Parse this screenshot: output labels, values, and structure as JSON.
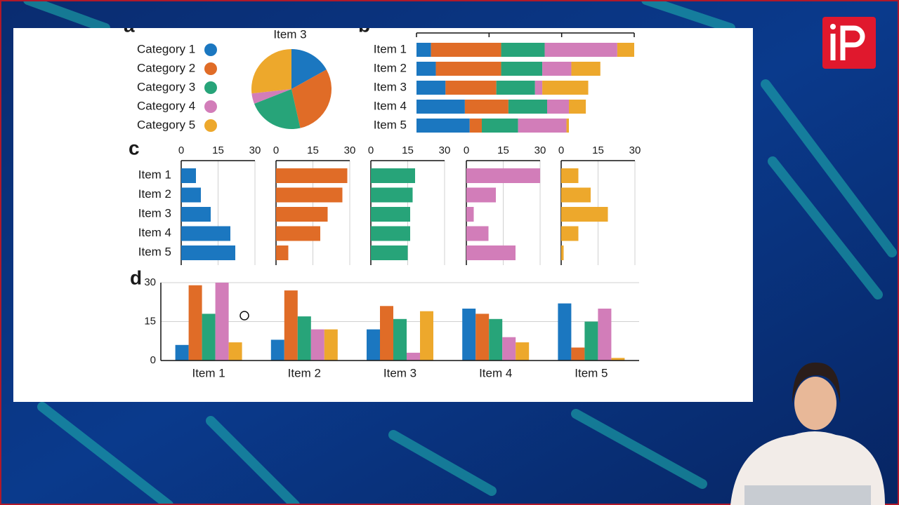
{
  "chart_data": [
    {
      "type": "pie",
      "panel": "a",
      "title": "Item 3",
      "categories": [
        "Category 1",
        "Category 2",
        "Category 3",
        "Category 4",
        "Category 5"
      ],
      "values": [
        12,
        21,
        16,
        3,
        19
      ],
      "colors": [
        "#1b77c0",
        "#e06c27",
        "#27a479",
        "#d27db9",
        "#eda82c"
      ]
    },
    {
      "type": "stacked-bar",
      "panel": "b",
      "categories": [
        "Item 1",
        "Item 2",
        "Item 3",
        "Item 4",
        "Item 5"
      ],
      "xlim": [
        0,
        90
      ],
      "xticks": [
        0,
        30,
        60,
        90
      ],
      "series": [
        {
          "color": "#1b77c0",
          "values": [
            6,
            8,
            12,
            20,
            22
          ]
        },
        {
          "color": "#e06c27",
          "values": [
            29,
            27,
            21,
            18,
            5
          ]
        },
        {
          "color": "#27a479",
          "values": [
            18,
            17,
            16,
            16,
            15
          ]
        },
        {
          "color": "#d27db9",
          "values": [
            30,
            12,
            3,
            9,
            20
          ]
        },
        {
          "color": "#eda82c",
          "values": [
            7,
            12,
            19,
            7,
            1
          ]
        }
      ]
    },
    {
      "type": "bar-multiples",
      "panel": "c",
      "categories": [
        "Item 1",
        "Item 2",
        "Item 3",
        "Item 4",
        "Item 5"
      ],
      "xlim": [
        0,
        30
      ],
      "xticks": [
        0,
        15,
        30
      ],
      "series": [
        {
          "color": "#1b77c0",
          "values": [
            6,
            8,
            12,
            20,
            22
          ]
        },
        {
          "color": "#e06c27",
          "values": [
            29,
            27,
            21,
            18,
            5
          ]
        },
        {
          "color": "#27a479",
          "values": [
            18,
            17,
            16,
            16,
            15
          ]
        },
        {
          "color": "#d27db9",
          "values": [
            30,
            12,
            3,
            9,
            20
          ]
        },
        {
          "color": "#eda82c",
          "values": [
            7,
            12,
            19,
            7,
            1
          ]
        }
      ]
    },
    {
      "type": "bar",
      "panel": "d",
      "categories": [
        "Item 1",
        "Item 2",
        "Item 3",
        "Item 4",
        "Item 5"
      ],
      "ylim": [
        0,
        30
      ],
      "yticks": [
        0,
        15,
        30
      ],
      "grid": true,
      "series": [
        {
          "color": "#1b77c0",
          "values": [
            6,
            8,
            12,
            20,
            22
          ]
        },
        {
          "color": "#e06c27",
          "values": [
            29,
            27,
            21,
            18,
            5
          ]
        },
        {
          "color": "#27a479",
          "values": [
            18,
            17,
            16,
            16,
            15
          ]
        },
        {
          "color": "#d27db9",
          "values": [
            30,
            12,
            3,
            9,
            20
          ]
        },
        {
          "color": "#eda82c",
          "values": [
            7,
            12,
            19,
            7,
            1
          ]
        }
      ]
    }
  ]
}
